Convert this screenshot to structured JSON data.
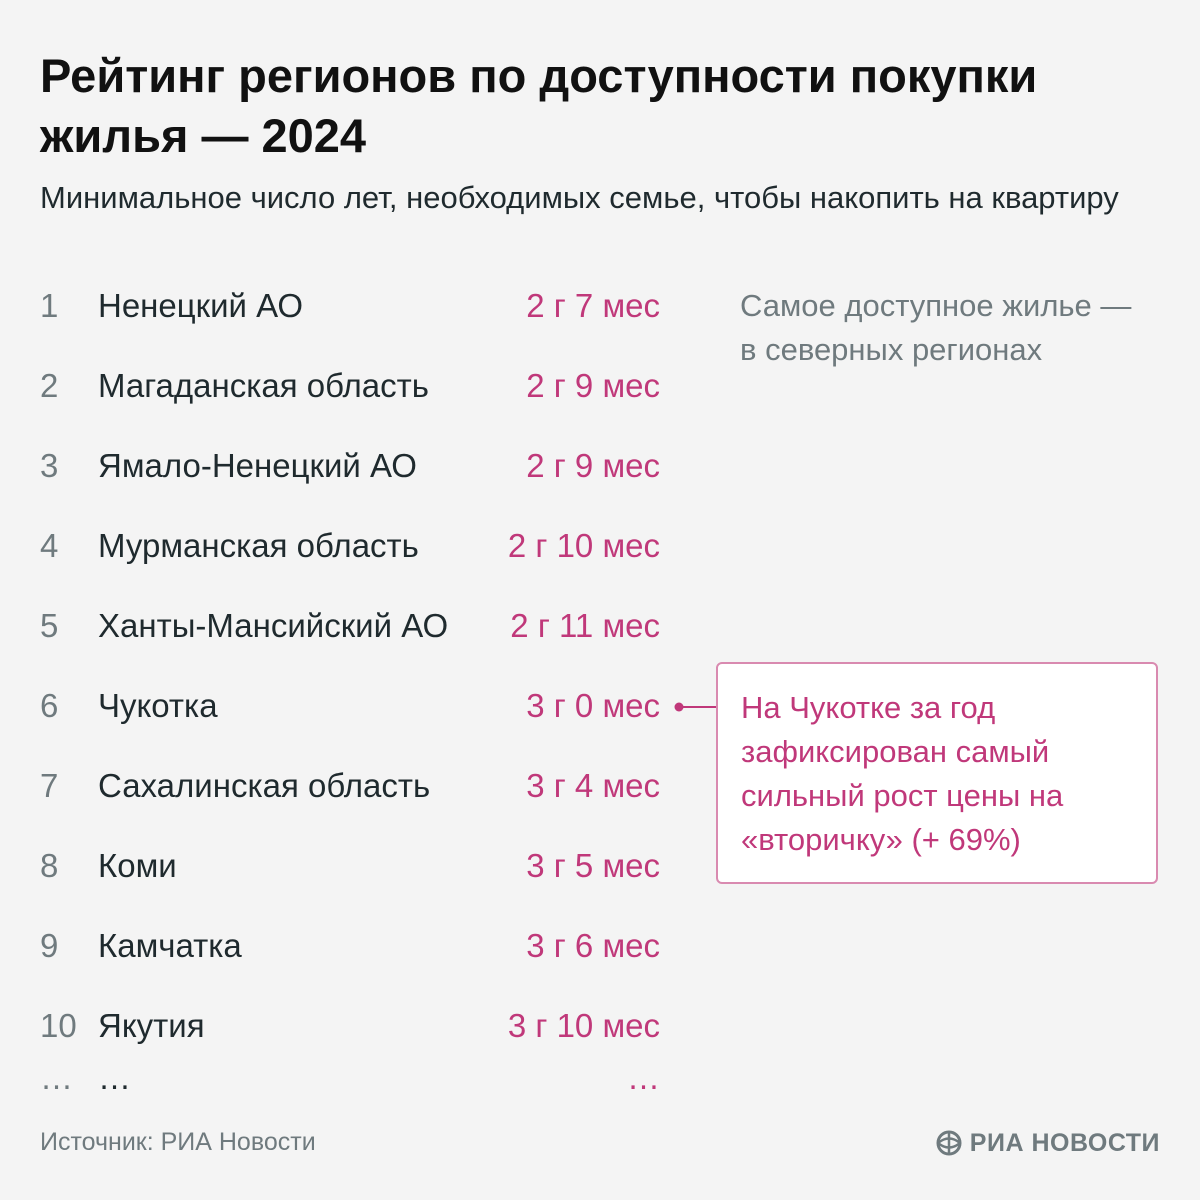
{
  "title": "Рейтинг регионов по доступности покупки жилья — 2024",
  "subtitle": "Минимальное число лет, необходимых семье, чтобы накопить на квартиру",
  "note_grey": "Самое доступное жилье — в северных регионах",
  "callout": "На Чукотке за год зафиксирован самый сильный рост цены на «вторичку» (+ 69%)",
  "ellipsis": "…",
  "source": "Источник: РИА Новости",
  "logo_text": "РИА НОВОСТИ",
  "colors": {
    "accent": "#c0387a",
    "text": "#1f2a2e",
    "muted": "#6f7a7e",
    "background": "#f4f4f4",
    "callout_border": "#d98ab0"
  },
  "chart_data": {
    "type": "table",
    "title": "Рейтинг регионов по доступности покупки жилья — 2024",
    "subtitle": "Минимальное число лет, необходимых семье, чтобы накопить на квартиру",
    "rows": [
      {
        "rank": "1",
        "region": "Ненецкий АО",
        "value": "2 г 7 мес"
      },
      {
        "rank": "2",
        "region": "Магаданская область",
        "value": "2 г 9 мес"
      },
      {
        "rank": "3",
        "region": "Ямало-Ненецкий АО",
        "value": "2 г 9 мес"
      },
      {
        "rank": "4",
        "region": "Мурманская область",
        "value": "2 г 10 мес"
      },
      {
        "rank": "5",
        "region": "Ханты-Мансийский АО",
        "value": "2 г 11 мес"
      },
      {
        "rank": "6",
        "region": "Чукотка",
        "value": "3 г 0 мес"
      },
      {
        "rank": "7",
        "region": "Сахалинская область",
        "value": "3 г 4 мес"
      },
      {
        "rank": "8",
        "region": "Коми",
        "value": "3 г 5 мес"
      },
      {
        "rank": "9",
        "region": "Камчатка",
        "value": "3 г 6 мес"
      },
      {
        "rank": "10",
        "region": "Якутия",
        "value": "3 г 10 мес"
      }
    ],
    "highlighted_rank": "6"
  }
}
